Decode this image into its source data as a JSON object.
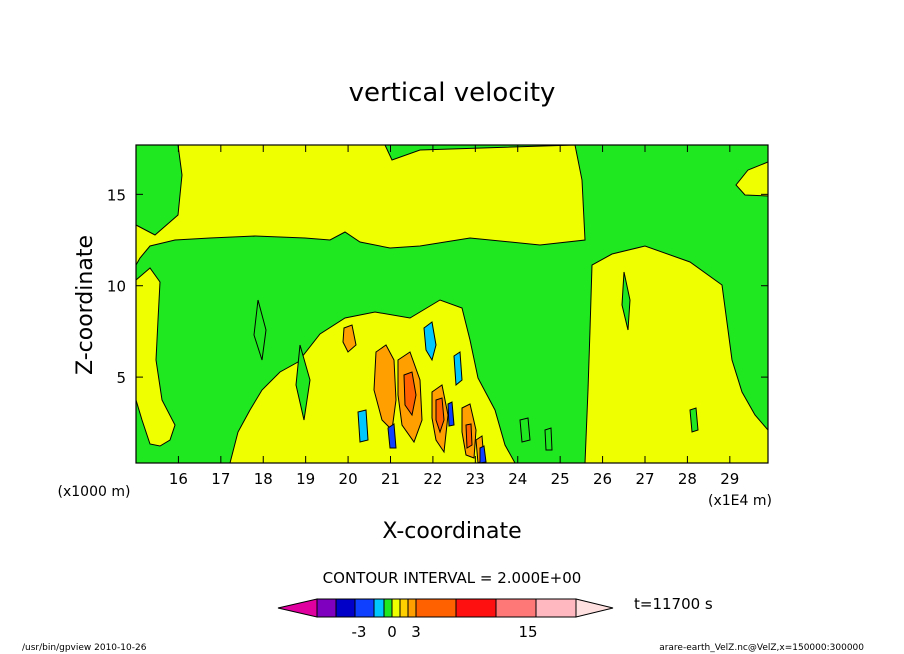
{
  "chart_data": {
    "type": "heatmap",
    "title": "vertical velocity",
    "xlabel": "X-coordinate",
    "ylabel": "Z-coordinate",
    "x_unit_label": "(x1E4 m)",
    "y_unit_label": "(x1000 m)",
    "x_ticks": [
      "16",
      "17",
      "18",
      "19",
      "20",
      "21",
      "22",
      "23",
      "24",
      "25",
      "26",
      "27",
      "28",
      "29"
    ],
    "x_tick_values": [
      16,
      17,
      18,
      19,
      20,
      21,
      22,
      23,
      24,
      25,
      26,
      27,
      28,
      29
    ],
    "y_ticks": [
      "5",
      "10",
      "15"
    ],
    "y_tick_values": [
      5,
      10,
      15
    ],
    "xlim": [
      15,
      29.9
    ],
    "ylim": [
      0.3,
      17.7
    ],
    "contour_interval_text": "CONTOUR INTERVAL = 2.000E+00",
    "time_label": "t=11700 s",
    "colorbar": {
      "colors": [
        "#e000a0",
        "#8000c0",
        "#0000c8",
        "#1040ff",
        "#00c8ff",
        "#20e820",
        "#f0ff00",
        "#ffd000",
        "#ffa000",
        "#ff6000",
        "#ff1010",
        "#ff7878",
        "#ffb8c0",
        "#ffe0e0"
      ],
      "tick_labels": [
        "-3",
        "0",
        "3",
        "15"
      ]
    },
    "colors": {
      "background_positive": "#f0ff00",
      "background_near_zero": "#20e820",
      "orange": "#ffa000",
      "dark_orange": "#ff6000",
      "cyan": "#00c8ff",
      "blue": "#1040ff"
    },
    "footer_left": "/usr/bin/gpview   2010-10-26",
    "footer_right": "arare-earth_VelZ.nc@VelZ,x=150000:300000"
  }
}
